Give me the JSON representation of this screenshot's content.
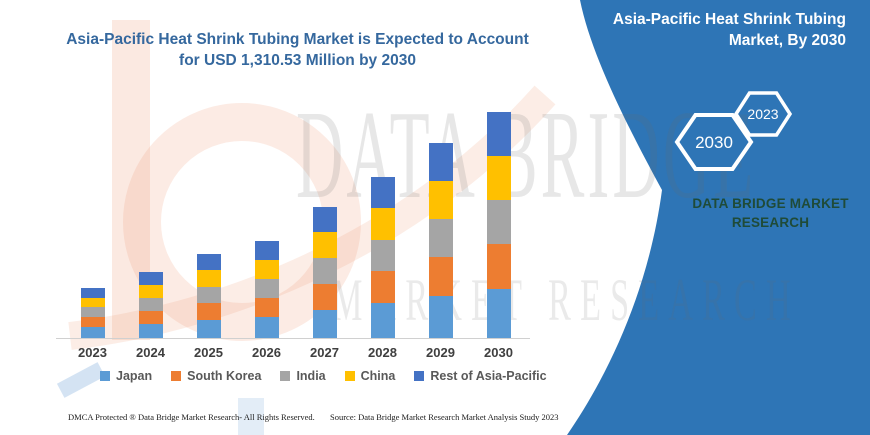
{
  "title": {
    "line1": "Asia-Pacific Heat Shrink Tubing Market is Expected to Account",
    "line2": "for USD 1,310.53 Million by 2030"
  },
  "panel": {
    "bg_color": "#2e75b6",
    "title_line1": "Asia-Pacific Heat Shrink Tubing",
    "title_line2": "Market, By 2030",
    "hex_large_label": "2030",
    "hex_small_label": "2023",
    "brand_line1": "DATA BRIDGE MARKET",
    "brand_line2": "RESEARCH",
    "brand_color": "#1f4b38"
  },
  "watermark": {
    "row1": "DATA BRIDGE",
    "row2": "MARKET RESEARCH"
  },
  "footer": {
    "left": "DMCA Protected ® Data Bridge Market Research-  All Rights Reserved.",
    "right": "Source: Data Bridge Market Research  Market Analysis Study 2023"
  },
  "chart_data": {
    "type": "bar",
    "stacked": true,
    "title": "Asia-Pacific Heat Shrink Tubing Market is Expected to Account for USD 1,310.53 Million by 2030",
    "unit": "USD Million",
    "xlabel": "",
    "ylabel": "",
    "grid": false,
    "legend_position": "bottom",
    "categories": [
      "2023",
      "2024",
      "2025",
      "2026",
      "2027",
      "2028",
      "2029",
      "2030"
    ],
    "series": [
      {
        "name": "Japan",
        "color": "#5b9bd5",
        "values": [
          63,
          82,
          105,
          121,
          163,
          201,
          243,
          282
        ]
      },
      {
        "name": "South Korea",
        "color": "#ed7d31",
        "values": [
          58,
          77,
          97,
          113,
          152,
          187,
          226,
          262
        ]
      },
      {
        "name": "India",
        "color": "#a5a5a5",
        "values": [
          57,
          75,
          95,
          110,
          149,
          183,
          221,
          256
        ]
      },
      {
        "name": "China",
        "color": "#ffc000",
        "values": [
          56,
          75,
          95,
          110,
          148,
          182,
          221,
          256
        ]
      },
      {
        "name": "Rest of Asia-Pacific",
        "color": "#4472c4",
        "values": [
          56,
          74,
          95,
          109,
          148,
          182,
          220,
          254.53
        ]
      }
    ],
    "totals": [
      290,
      383,
      487,
      563,
      760,
      935,
      1131,
      1310.53
    ],
    "note": "No value axis shown; segment values estimated from bar heights. Only the 2030 total of USD 1,310.53 Million is stated on the chart."
  }
}
